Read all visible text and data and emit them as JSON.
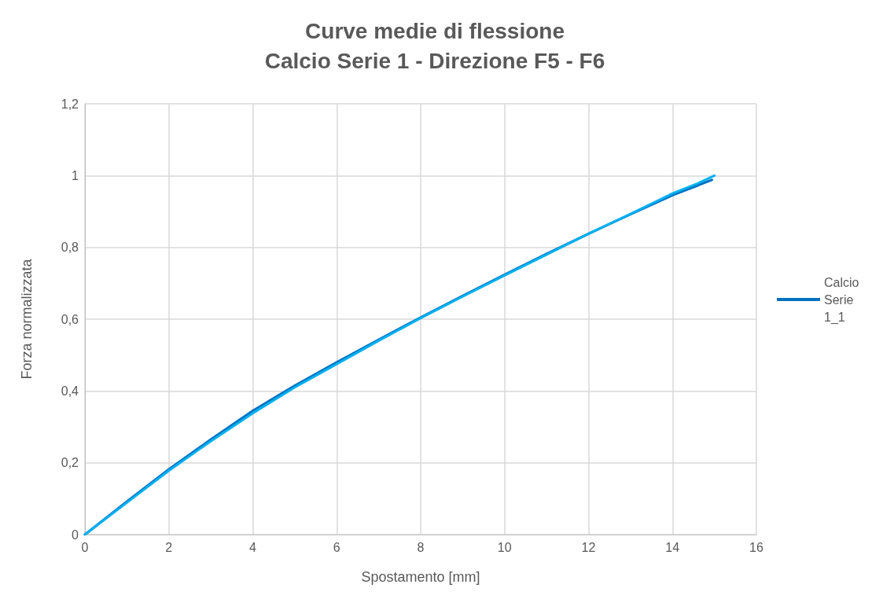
{
  "chart_data": {
    "type": "line",
    "title": "Curve medie di flessione",
    "subtitle": "Calcio Serie 1 - Direzione F5 - F6",
    "xlabel": "Spostamento [mm]",
    "ylabel": "Forza normalizzata",
    "xlim": [
      0,
      16
    ],
    "xticks": [
      0,
      2,
      4,
      6,
      8,
      10,
      12,
      14,
      16
    ],
    "ylim": [
      0,
      1.2
    ],
    "yticks": [
      0,
      {
        "value": 0.2,
        "label": "0,2"
      },
      {
        "value": 0.4,
        "label": "0,4"
      },
      {
        "value": 0.6,
        "label": "0,6"
      },
      {
        "value": 0.8,
        "label": "0,8"
      },
      1,
      {
        "value": 1.2,
        "label": "1,2"
      }
    ],
    "grid": true,
    "legend": "right",
    "marker": "none",
    "line_style": "solid",
    "series": [
      {
        "name": "Calcio Serie 1_1",
        "color": "#0070c0",
        "x": [
          0,
          1,
          2,
          3,
          4,
          5,
          6,
          7,
          8,
          9,
          10,
          11,
          12,
          13,
          14,
          14.6,
          14.65,
          14.94
        ],
        "values": [
          0,
          0.092,
          0.182,
          0.265,
          0.345,
          0.415,
          0.48,
          0.543,
          0.605,
          0.665,
          0.724,
          0.782,
          0.838,
          0.892,
          0.945,
          0.972,
          0.975,
          0.988
        ]
      },
      {
        "color": "#00b0f0",
        "x": [
          0,
          1,
          2,
          3,
          4,
          5,
          6,
          7,
          8,
          9,
          10,
          11,
          12,
          13,
          14,
          14.6,
          15
        ],
        "values": [
          0,
          0.089,
          0.178,
          0.26,
          0.338,
          0.41,
          0.475,
          0.54,
          0.603,
          0.663,
          0.722,
          0.78,
          0.838,
          0.893,
          0.95,
          0.978,
          1.0
        ]
      }
    ]
  }
}
